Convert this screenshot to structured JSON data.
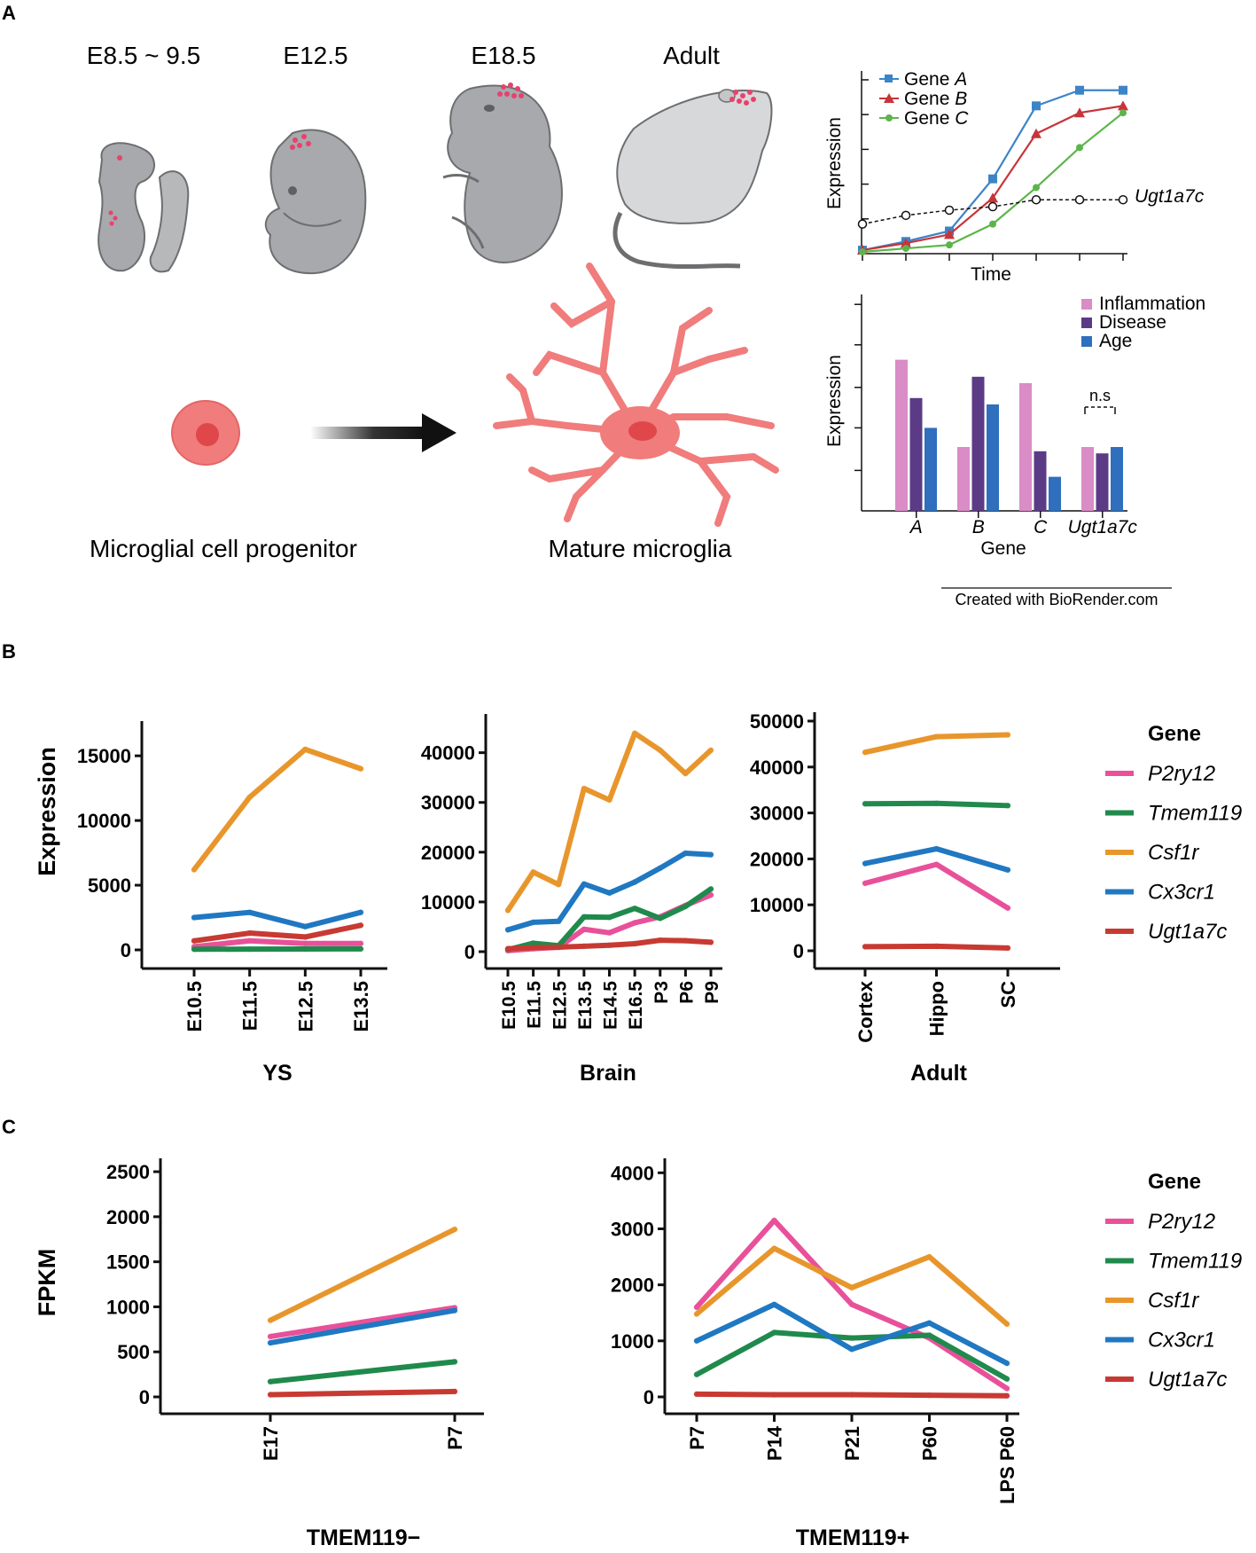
{
  "panels": {
    "a": "A",
    "b": "B",
    "c": "C"
  },
  "colors": {
    "P2ry12": "#e8519a",
    "Tmem119": "#1f8a4c",
    "Csf1r": "#e8962c",
    "Cx3cr1": "#1f78c1",
    "Ugt1a7c": "#c73a32",
    "geneA": "#3d84c6",
    "geneB": "#c7343a",
    "geneC": "#5cb54a",
    "inflammation": "#d98cc5",
    "disease": "#5b3b86",
    "age": "#2f6fbd",
    "cell": "#ef7b7b",
    "mouse": "#a7a9ac"
  },
  "panel_a": {
    "stages": [
      "E8.5 ~ 9.5",
      "E12.5",
      "E18.5",
      "Adult"
    ],
    "progenitor_label": "Microglial cell progenitor",
    "mature_label": "Mature microglia",
    "credit": "Created with BioRender.com",
    "schematic_line": {
      "xlabel": "Time",
      "ylabel": "Expression",
      "legend": [
        {
          "prefix": "Gene ",
          "name": "A"
        },
        {
          "prefix": "Gene ",
          "name": "B"
        },
        {
          "prefix": "Gene ",
          "name": "C"
        }
      ],
      "flat_label": "Ugt1a7c"
    },
    "schematic_bar": {
      "xlabel": "Gene",
      "ylabel": "Expression",
      "legend": [
        "Inflammation",
        "Disease",
        "Age"
      ],
      "ns_label": "n.s",
      "categories": [
        "A",
        "B",
        "C",
        "Ugt1a7c"
      ]
    }
  },
  "legend": {
    "title": "Gene",
    "genes": [
      "P2ry12",
      "Tmem119",
      "Csf1r",
      "Cx3cr1",
      "Ugt1a7c"
    ]
  },
  "chart_data": [
    {
      "id": "A-line",
      "type": "line",
      "title": "",
      "xlabel": "Time",
      "ylabel": "Expression",
      "x": [
        0,
        1,
        2,
        3,
        4,
        5,
        6
      ],
      "ylim": [
        0,
        1
      ],
      "series": [
        {
          "name": "Gene A",
          "values": [
            0.01,
            0.06,
            0.12,
            0.42,
            0.84,
            0.93,
            0.93
          ]
        },
        {
          "name": "Gene B",
          "values": [
            0.01,
            0.05,
            0.1,
            0.31,
            0.68,
            0.8,
            0.84
          ]
        },
        {
          "name": "Gene C",
          "values": [
            0.0,
            0.02,
            0.04,
            0.16,
            0.37,
            0.6,
            0.8
          ]
        },
        {
          "name": "Ugt1a7c",
          "values": [
            0.16,
            0.21,
            0.24,
            0.26,
            0.3,
            0.3,
            0.3
          ]
        }
      ]
    },
    {
      "id": "A-bar",
      "type": "bar",
      "title": "",
      "xlabel": "Gene",
      "ylabel": "Expression",
      "categories": [
        "A",
        "B",
        "C",
        "Ugt1a7c"
      ],
      "ylim": [
        0,
        1
      ],
      "series": [
        {
          "name": "Inflammation",
          "values": [
            0.71,
            0.3,
            0.6,
            0.3
          ]
        },
        {
          "name": "Disease",
          "values": [
            0.53,
            0.63,
            0.28,
            0.27
          ]
        },
        {
          "name": "Age",
          "values": [
            0.39,
            0.5,
            0.16,
            0.3
          ]
        }
      ]
    },
    {
      "id": "B-YS",
      "type": "line",
      "title": "YS",
      "xlabel": "YS",
      "ylabel": "Expression",
      "categories": [
        "E10.5",
        "E11.5",
        "E12.5",
        "E13.5"
      ],
      "ylim": [
        0,
        17000
      ],
      "yticks": [
        0,
        5000,
        10000,
        15000
      ],
      "series": [
        {
          "name": "P2ry12",
          "values": [
            250,
            700,
            500,
            500
          ]
        },
        {
          "name": "Tmem119",
          "values": [
            50,
            60,
            70,
            80
          ]
        },
        {
          "name": "Csf1r",
          "values": [
            6200,
            11800,
            15500,
            14000
          ]
        },
        {
          "name": "Cx3cr1",
          "values": [
            2500,
            2900,
            1800,
            2900
          ]
        },
        {
          "name": "Ugt1a7c",
          "values": [
            700,
            1300,
            1000,
            1900
          ]
        }
      ]
    },
    {
      "id": "B-Brain",
      "type": "line",
      "title": "Brain",
      "xlabel": "Brain",
      "ylabel": "",
      "categories": [
        "E10.5",
        "E11.5",
        "E12.5",
        "E13.5",
        "E14.5",
        "E16.5",
        "P3",
        "P6",
        "P9"
      ],
      "ylim": [
        0,
        46000
      ],
      "yticks": [
        0,
        10000,
        20000,
        30000,
        40000
      ],
      "series": [
        {
          "name": "P2ry12",
          "values": [
            200,
            600,
            900,
            4500,
            3800,
            5800,
            7000,
            9300,
            11400
          ]
        },
        {
          "name": "Tmem119",
          "values": [
            400,
            1700,
            1200,
            7000,
            6900,
            8700,
            6700,
            9100,
            12600
          ]
        },
        {
          "name": "Csf1r",
          "values": [
            8300,
            16000,
            13500,
            32800,
            30500,
            43900,
            40500,
            35800,
            40500
          ]
        },
        {
          "name": "Cx3cr1",
          "values": [
            4400,
            5900,
            6100,
            13600,
            11800,
            14000,
            16800,
            19800,
            19500
          ]
        },
        {
          "name": "Ugt1a7c",
          "values": [
            600,
            800,
            900,
            1100,
            1300,
            1600,
            2300,
            2200,
            1900
          ]
        }
      ]
    },
    {
      "id": "B-Adult",
      "type": "line",
      "title": "Adult",
      "xlabel": "Adult",
      "ylabel": "",
      "categories": [
        "Cortex",
        "Hippo",
        "SC"
      ],
      "ylim": [
        0,
        50000
      ],
      "yticks": [
        0,
        10000,
        20000,
        30000,
        40000,
        50000
      ],
      "series": [
        {
          "name": "P2ry12",
          "values": [
            14700,
            18800,
            9300
          ]
        },
        {
          "name": "Tmem119",
          "values": [
            32000,
            32100,
            31600
          ]
        },
        {
          "name": "Csf1r",
          "values": [
            43200,
            46600,
            47000
          ]
        },
        {
          "name": "Cx3cr1",
          "values": [
            19000,
            22200,
            17600
          ]
        },
        {
          "name": "Ugt1a7c",
          "values": [
            900,
            1000,
            600
          ]
        }
      ]
    },
    {
      "id": "C-neg",
      "type": "line",
      "title": "TMEM119−",
      "xlabel": "TMEM119−",
      "ylabel": "FPKM",
      "categories": [
        "E17",
        "P7"
      ],
      "ylim": [
        0,
        2550
      ],
      "yticks": [
        0,
        500,
        1000,
        1500,
        2000,
        2500
      ],
      "series": [
        {
          "name": "P2ry12",
          "values": [
            670,
            990
          ]
        },
        {
          "name": "Tmem119",
          "values": [
            170,
            390
          ]
        },
        {
          "name": "Csf1r",
          "values": [
            850,
            1860
          ]
        },
        {
          "name": "Cx3cr1",
          "values": [
            600,
            960
          ]
        },
        {
          "name": "Ugt1a7c",
          "values": [
            25,
            60
          ]
        }
      ]
    },
    {
      "id": "C-pos",
      "type": "line",
      "title": "TMEM119+",
      "xlabel": "TMEM119+",
      "ylabel": "",
      "categories": [
        "P7",
        "P14",
        "P21",
        "P60",
        "LPS P60"
      ],
      "ylim": [
        0,
        4100
      ],
      "yticks": [
        0,
        1000,
        2000,
        3000,
        4000
      ],
      "series": [
        {
          "name": "P2ry12",
          "values": [
            1600,
            3150,
            1650,
            1050,
            150
          ]
        },
        {
          "name": "Tmem119",
          "values": [
            400,
            1150,
            1050,
            1100,
            320
          ]
        },
        {
          "name": "Csf1r",
          "values": [
            1480,
            2650,
            1950,
            2500,
            1300
          ]
        },
        {
          "name": "Cx3cr1",
          "values": [
            1000,
            1650,
            850,
            1320,
            600
          ]
        },
        {
          "name": "Ugt1a7c",
          "values": [
            50,
            40,
            40,
            30,
            20
          ]
        }
      ]
    }
  ]
}
